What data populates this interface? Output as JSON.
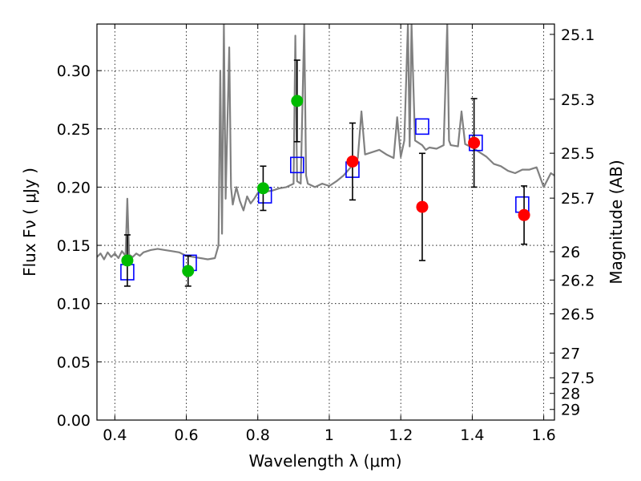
{
  "chart_data": {
    "type": "scatter",
    "xlabel": "Wavelength  λ (μm)",
    "ylabel": "Flux  Fν  ( μJy )",
    "y2label": "Magnitude (AB)",
    "xlim": [
      0.35,
      1.63
    ],
    "ylim": [
      0.0,
      0.34
    ],
    "grid": true,
    "x_ticks": [
      0.4,
      0.6,
      0.8,
      1.0,
      1.2,
      1.4,
      1.6
    ],
    "x_tick_labels": [
      "0.4",
      "0.6",
      "0.8",
      "1",
      "1.2",
      "1.4",
      "1.6"
    ],
    "y_ticks": [
      0.0,
      0.05,
      0.1,
      0.15,
      0.2,
      0.25,
      0.3
    ],
    "y_tick_labels": [
      "0.00",
      "0.05",
      "0.10",
      "0.15",
      "0.20",
      "0.25",
      "0.30"
    ],
    "y2_tick_labels": [
      "25.1",
      "25.3",
      "25.5",
      "25.7",
      "26",
      "26.2",
      "26.5",
      "27",
      "27.5",
      "28",
      "29"
    ],
    "series": [
      {
        "kind": "line",
        "color": "#808080",
        "x": [
          0.35,
          0.36,
          0.37,
          0.38,
          0.39,
          0.4,
          0.41,
          0.42,
          0.43,
          0.435,
          0.44,
          0.45,
          0.46,
          0.47,
          0.48,
          0.5,
          0.52,
          0.54,
          0.56,
          0.58,
          0.6,
          0.62,
          0.64,
          0.66,
          0.68,
          0.69,
          0.695,
          0.7,
          0.705,
          0.71,
          0.72,
          0.725,
          0.73,
          0.74,
          0.75,
          0.76,
          0.77,
          0.78,
          0.79,
          0.8,
          0.82,
          0.84,
          0.86,
          0.88,
          0.9,
          0.905,
          0.91,
          0.92,
          0.93,
          0.935,
          0.94,
          0.96,
          0.98,
          1.0,
          1.02,
          1.04,
          1.06,
          1.08,
          1.09,
          1.1,
          1.12,
          1.14,
          1.16,
          1.18,
          1.19,
          1.2,
          1.21,
          1.22,
          1.225,
          1.23,
          1.24,
          1.25,
          1.26,
          1.27,
          1.28,
          1.3,
          1.32,
          1.33,
          1.335,
          1.34,
          1.36,
          1.37,
          1.38,
          1.4,
          1.42,
          1.44,
          1.46,
          1.48,
          1.5,
          1.52,
          1.54,
          1.56,
          1.58,
          1.6,
          1.62,
          1.63
        ],
        "y": [
          0.14,
          0.143,
          0.138,
          0.144,
          0.14,
          0.143,
          0.139,
          0.145,
          0.141,
          0.19,
          0.142,
          0.14,
          0.143,
          0.141,
          0.144,
          0.146,
          0.147,
          0.146,
          0.145,
          0.144,
          0.141,
          0.14,
          0.139,
          0.138,
          0.139,
          0.15,
          0.3,
          0.16,
          0.34,
          0.19,
          0.32,
          0.2,
          0.185,
          0.2,
          0.188,
          0.18,
          0.192,
          0.186,
          0.19,
          0.195,
          0.196,
          0.197,
          0.199,
          0.2,
          0.203,
          0.33,
          0.205,
          0.203,
          0.34,
          0.21,
          0.203,
          0.2,
          0.203,
          0.201,
          0.205,
          0.21,
          0.217,
          0.225,
          0.265,
          0.228,
          0.23,
          0.232,
          0.228,
          0.225,
          0.26,
          0.226,
          0.24,
          0.34,
          0.235,
          0.34,
          0.24,
          0.238,
          0.236,
          0.232,
          0.234,
          0.233,
          0.236,
          0.34,
          0.24,
          0.236,
          0.235,
          0.265,
          0.237,
          0.234,
          0.23,
          0.226,
          0.22,
          0.218,
          0.214,
          0.212,
          0.215,
          0.215,
          0.217,
          0.2,
          0.212,
          0.21
        ]
      },
      {
        "kind": "model-boxes",
        "color": "#0000ff",
        "x": [
          0.435,
          0.61,
          0.82,
          0.91,
          1.065,
          1.26,
          1.41,
          1.54
        ],
        "y": [
          0.127,
          0.135,
          0.193,
          0.219,
          0.215,
          0.252,
          0.238,
          0.185
        ]
      },
      {
        "kind": "points",
        "color": "#00bb00",
        "x": [
          0.435,
          0.605,
          0.815,
          0.91
        ],
        "y": [
          0.137,
          0.128,
          0.199,
          0.274
        ],
        "err": [
          0.022,
          0.013,
          0.019,
          0.035
        ]
      },
      {
        "kind": "points",
        "color": "#ff0000",
        "x": [
          1.065,
          1.26,
          1.405,
          1.545
        ],
        "y": [
          0.222,
          0.183,
          0.238,
          0.176
        ],
        "err": [
          0.033,
          0.046,
          0.038,
          0.025
        ]
      }
    ]
  }
}
